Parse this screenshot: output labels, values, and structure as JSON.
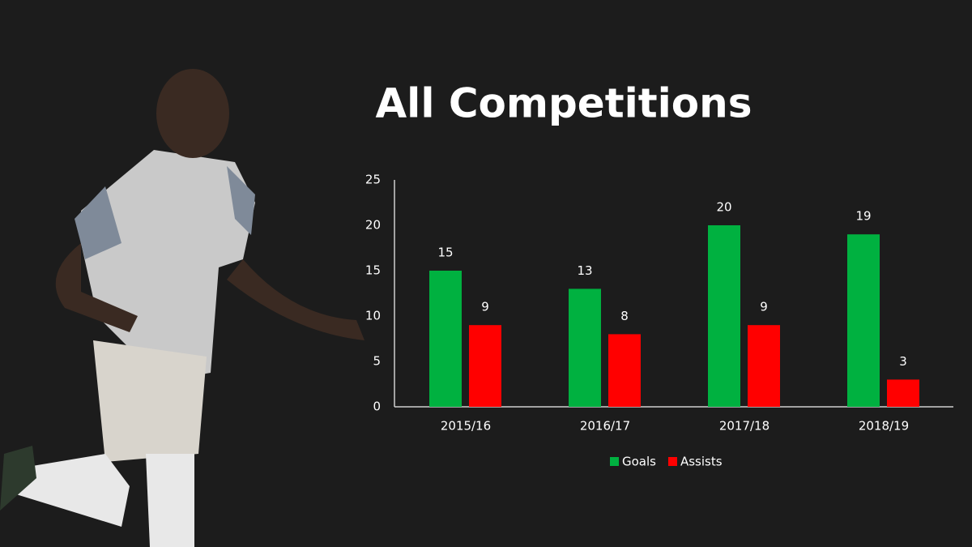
{
  "chart_data": {
    "type": "bar",
    "title": "All Competitions",
    "categories": [
      "2015/16",
      "2016/17",
      "2017/18",
      "2018/19"
    ],
    "series": [
      {
        "name": "Goals",
        "color": "#00b140",
        "values": [
          15,
          13,
          20,
          19
        ]
      },
      {
        "name": "Assists",
        "color": "#ff0000",
        "values": [
          9,
          8,
          9,
          3
        ]
      }
    ],
    "ylim": [
      0,
      25
    ],
    "yticks": [
      0,
      5,
      10,
      15,
      20,
      25
    ],
    "grid": false,
    "legend": "bottom"
  }
}
